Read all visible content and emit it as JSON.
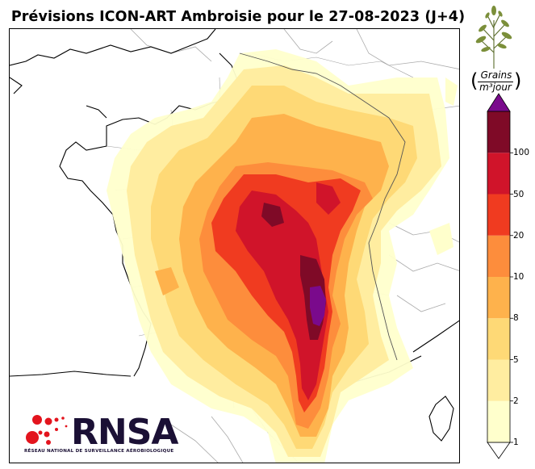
{
  "title": "Prévisions ICON-ART Ambroisie pour le 27-08-2023 (J+4)",
  "colorbar": {
    "unit_numerator": "Grains",
    "unit_denominator": "m³jour",
    "unit_left_paren": "(",
    "unit_right_paren": ")",
    "ticks": [
      "1",
      "2",
      "5",
      "8",
      "10",
      "20",
      "50",
      "100"
    ],
    "colors": [
      "#ffffcc",
      "#ffeda0",
      "#fed976",
      "#feb24c",
      "#fd8d3c",
      "#f03b20",
      "#d0142a",
      "#7f0a27"
    ],
    "overflow_color": "#7a0a8c",
    "extend": "both"
  },
  "logo": {
    "name": "RNSA",
    "subtitle": "RÉSEAU NATIONAL DE SURVEILLANCE AÉROBIOLOGIQUE",
    "dot_color": "#e3141d"
  },
  "map": {
    "region": "France",
    "forecast_field": "pollen-ambroisie"
  }
}
